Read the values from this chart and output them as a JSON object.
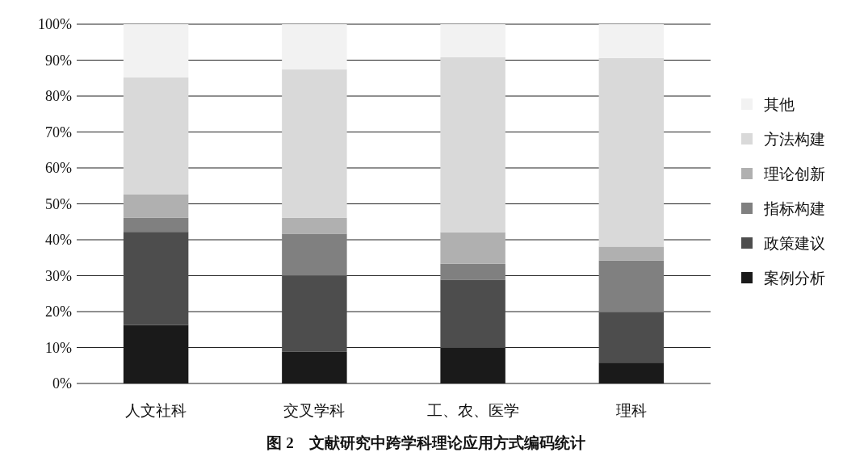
{
  "chart_data": {
    "type": "bar",
    "stacked": true,
    "title": "图 2　文献研究中跨学科理论应用方式编码统计",
    "categories": [
      "人文社科",
      "交叉学科",
      "工、农、医学",
      "理科"
    ],
    "series": [
      {
        "name": "案例分析",
        "color": "#1a1a1a",
        "values": [
          16.3,
          8.8,
          9.9,
          5.8
        ]
      },
      {
        "name": "政策建议",
        "color": "#4d4d4d",
        "values": [
          25.9,
          21.2,
          19.0,
          14.1
        ]
      },
      {
        "name": "指标构建",
        "color": "#808080",
        "values": [
          3.9,
          11.7,
          4.4,
          14.3
        ]
      },
      {
        "name": "理论创新",
        "color": "#b0b0b0",
        "values": [
          6.5,
          4.4,
          8.8,
          3.9
        ]
      },
      {
        "name": "方法构建",
        "color": "#d9d9d9",
        "values": [
          32.6,
          41.3,
          48.7,
          52.5
        ]
      },
      {
        "name": "其他",
        "color": "#f2f2f2",
        "values": [
          14.8,
          12.6,
          9.2,
          9.4
        ]
      }
    ],
    "ylim": [
      0,
      100
    ],
    "yticks": [
      {
        "value": 0,
        "label": "0%"
      },
      {
        "value": 10,
        "label": "10%"
      },
      {
        "value": 20,
        "label": "20%"
      },
      {
        "value": 30,
        "label": "30%"
      },
      {
        "value": 40,
        "label": "40%"
      },
      {
        "value": 50,
        "label": "50%"
      },
      {
        "value": 60,
        "label": "60%"
      },
      {
        "value": 70,
        "label": "70%"
      },
      {
        "value": 80,
        "label": "80%"
      },
      {
        "value": 90,
        "label": "90%"
      },
      {
        "value": 100,
        "label": "100%"
      }
    ],
    "grid": "y",
    "legend": "right"
  }
}
